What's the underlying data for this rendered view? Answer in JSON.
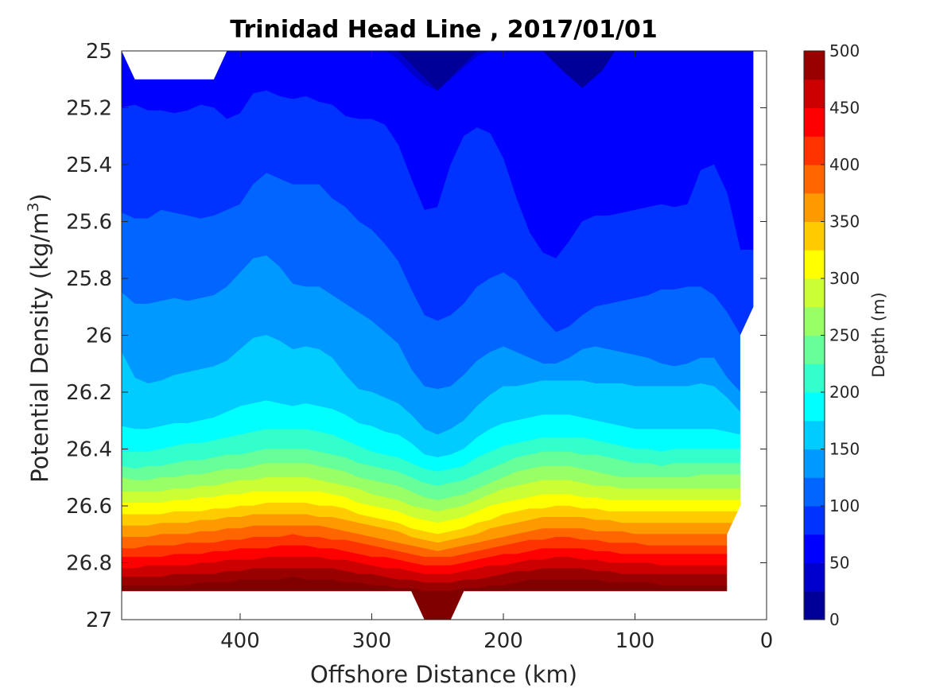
{
  "chart_data": {
    "type": "contour",
    "title": "Trinidad Head Line , 2017/01/01",
    "xlabel": "Offshore Distance (km)",
    "ylabel_main": "Potential Density (kg/m",
    "ylabel_sup": "3",
    "ylabel_close": ")",
    "xlim": [
      490,
      0
    ],
    "ylim": [
      25,
      27
    ],
    "y_reversed": true,
    "x_ticks": [
      {
        "value": 400,
        "label": "400"
      },
      {
        "value": 300,
        "label": "300"
      },
      {
        "value": 200,
        "label": "200"
      },
      {
        "value": 100,
        "label": "100"
      },
      {
        "value": 0,
        "label": "0"
      }
    ],
    "y_ticks": [
      {
        "value": 25,
        "label": "25"
      },
      {
        "value": 25.2,
        "label": "25.2"
      },
      {
        "value": 25.4,
        "label": "25.4"
      },
      {
        "value": 25.6,
        "label": "25.6"
      },
      {
        "value": 25.8,
        "label": "25.8"
      },
      {
        "value": 26,
        "label": "26"
      },
      {
        "value": 26.2,
        "label": "26.2"
      },
      {
        "value": 26.4,
        "label": "26.4"
      },
      {
        "value": 26.6,
        "label": "26.6"
      },
      {
        "value": 26.8,
        "label": "26.8"
      },
      {
        "value": 27,
        "label": "27"
      }
    ],
    "colorbar": {
      "label": "Depth (m)",
      "min": 0,
      "max": 500,
      "step": 25,
      "tick_labels": [
        "0",
        "50",
        "100",
        "150",
        "200",
        "250",
        "300",
        "350",
        "400",
        "450",
        "500"
      ],
      "colormap": "jet"
    },
    "contour_levels": [
      25,
      50,
      75,
      100,
      125,
      150,
      175,
      200,
      225,
      250,
      275,
      300,
      325,
      350,
      375,
      400,
      425,
      450,
      475
    ],
    "contour_x": [
      490,
      480,
      470,
      460,
      450,
      440,
      430,
      420,
      410,
      400,
      390,
      380,
      370,
      360,
      350,
      340,
      330,
      320,
      310,
      300,
      290,
      280,
      270,
      260,
      250,
      240,
      230,
      220,
      210,
      200,
      190,
      180,
      170,
      160,
      150,
      140,
      130,
      120,
      110,
      100,
      90,
      80,
      70,
      60,
      50,
      40,
      30,
      20
    ],
    "contour_density": {
      "25": [
        25.0,
        25.0,
        25.0,
        25.0,
        25.0,
        25.0,
        25.0,
        25.0,
        25.0,
        25.0,
        25.0,
        25.0,
        25.0,
        25.0,
        25.0,
        25.0,
        25.0,
        25.0,
        25.0,
        25.0,
        25.0,
        25.03,
        25.08,
        25.12,
        25.14,
        25.1,
        25.06,
        25.02,
        25.0,
        25.0,
        25.0,
        25.0,
        25.0,
        25.0,
        25.0,
        25.0,
        25.0,
        25.0,
        25.0,
        25.0,
        25.0,
        25.0,
        25.0,
        25.0,
        25.0,
        25.0,
        25.0,
        25.0
      ],
      "50": [
        25.2,
        25.19,
        25.21,
        25.21,
        25.22,
        25.21,
        25.19,
        25.2,
        25.24,
        25.22,
        25.15,
        25.14,
        25.16,
        25.17,
        25.16,
        25.18,
        25.19,
        25.23,
        25.24,
        25.24,
        25.26,
        25.33,
        25.45,
        25.56,
        25.55,
        25.4,
        25.3,
        25.27,
        25.29,
        25.38,
        25.52,
        25.64,
        25.71,
        25.73,
        25.67,
        25.6,
        25.58,
        25.58,
        25.57,
        25.56,
        25.55,
        25.54,
        25.55,
        25.54,
        25.42,
        25.4,
        25.5,
        25.7
      ],
      "75": [
        25.57,
        25.59,
        25.59,
        25.56,
        25.57,
        25.58,
        25.59,
        25.58,
        25.56,
        25.54,
        25.47,
        25.43,
        25.45,
        25.47,
        25.47,
        25.47,
        25.52,
        25.55,
        25.6,
        25.63,
        25.68,
        25.74,
        25.84,
        25.93,
        25.95,
        25.93,
        25.89,
        25.83,
        25.8,
        25.78,
        25.81,
        25.88,
        25.94,
        25.99,
        25.97,
        25.93,
        25.9,
        25.89,
        25.88,
        25.87,
        25.86,
        25.84,
        25.84,
        25.83,
        25.83,
        25.86,
        25.92,
        26.0
      ],
      "100": [
        25.85,
        25.89,
        25.89,
        25.88,
        25.87,
        25.88,
        25.87,
        25.86,
        25.83,
        25.78,
        25.73,
        25.72,
        25.76,
        25.82,
        25.83,
        25.83,
        25.86,
        25.89,
        25.92,
        25.95,
        25.99,
        26.03,
        26.12,
        26.18,
        26.19,
        26.18,
        26.14,
        26.09,
        26.06,
        26.04,
        26.06,
        26.08,
        26.1,
        26.1,
        26.08,
        26.05,
        26.04,
        26.05,
        26.06,
        26.07,
        26.08,
        26.1,
        26.11,
        26.1,
        26.08,
        26.08,
        26.15,
        26.2
      ],
      "125": [
        26.06,
        26.15,
        26.17,
        26.16,
        26.14,
        26.13,
        26.12,
        26.11,
        26.09,
        26.05,
        26.01,
        26.0,
        26.02,
        26.05,
        26.04,
        26.05,
        26.08,
        26.14,
        26.19,
        26.2,
        26.22,
        26.24,
        26.28,
        26.33,
        26.35,
        26.33,
        26.3,
        26.25,
        26.21,
        26.18,
        26.18,
        26.17,
        26.16,
        26.16,
        26.16,
        26.16,
        26.17,
        26.17,
        26.17,
        26.18,
        26.18,
        26.18,
        26.18,
        26.18,
        26.17,
        26.18,
        26.22,
        26.27
      ],
      "150": [
        26.32,
        26.33,
        26.33,
        26.32,
        26.31,
        26.31,
        26.3,
        26.29,
        26.27,
        26.25,
        26.24,
        26.23,
        26.24,
        26.25,
        26.24,
        26.25,
        26.26,
        26.28,
        26.31,
        26.32,
        26.34,
        26.35,
        26.38,
        26.42,
        26.43,
        26.42,
        26.4,
        26.36,
        26.33,
        26.31,
        26.3,
        26.29,
        26.28,
        26.28,
        26.28,
        26.29,
        26.3,
        26.31,
        26.32,
        26.33,
        26.33,
        26.33,
        26.33,
        26.33,
        26.33,
        26.33,
        26.34,
        26.35
      ],
      "175": [
        26.41,
        26.41,
        26.41,
        26.4,
        26.39,
        26.38,
        26.38,
        26.37,
        26.36,
        26.35,
        26.34,
        26.33,
        26.33,
        26.33,
        26.33,
        26.34,
        26.35,
        26.37,
        26.39,
        26.41,
        26.42,
        26.43,
        26.45,
        26.47,
        26.48,
        26.47,
        26.46,
        26.43,
        26.41,
        26.39,
        26.38,
        26.37,
        26.36,
        26.36,
        26.36,
        26.36,
        26.37,
        26.38,
        26.39,
        26.4,
        26.4,
        26.41,
        26.4,
        26.4,
        26.4,
        26.4,
        26.4,
        26.4
      ],
      "200": [
        26.46,
        26.47,
        26.46,
        26.46,
        26.45,
        26.44,
        26.44,
        26.43,
        26.42,
        26.42,
        26.41,
        26.4,
        26.4,
        26.4,
        26.4,
        26.41,
        26.42,
        26.43,
        26.45,
        26.46,
        26.47,
        26.48,
        26.5,
        26.52,
        26.53,
        26.52,
        26.51,
        26.49,
        26.47,
        26.45,
        26.43,
        26.42,
        26.41,
        26.41,
        26.41,
        26.42,
        26.42,
        26.43,
        26.44,
        26.45,
        26.45,
        26.46,
        26.45,
        26.45,
        26.45,
        26.45,
        26.45,
        26.45
      ],
      "225": [
        26.5,
        26.51,
        26.51,
        26.5,
        26.5,
        26.49,
        26.49,
        26.48,
        26.47,
        26.47,
        26.46,
        26.45,
        26.45,
        26.45,
        26.45,
        26.46,
        26.47,
        26.48,
        26.5,
        26.51,
        26.52,
        26.53,
        26.55,
        26.57,
        26.58,
        26.57,
        26.56,
        26.54,
        26.52,
        26.5,
        26.48,
        26.47,
        26.46,
        26.46,
        26.46,
        26.47,
        26.48,
        26.49,
        26.5,
        26.5,
        26.5,
        26.5,
        26.5,
        26.5,
        26.49,
        26.49,
        26.49,
        26.49
      ],
      "250": [
        26.55,
        26.55,
        26.55,
        26.55,
        26.54,
        26.54,
        26.53,
        26.53,
        26.52,
        26.51,
        26.51,
        26.5,
        26.5,
        26.5,
        26.5,
        26.51,
        26.52,
        26.53,
        26.54,
        26.56,
        26.57,
        26.58,
        26.6,
        26.61,
        26.62,
        26.61,
        26.6,
        26.58,
        26.56,
        26.54,
        26.53,
        26.52,
        26.51,
        26.51,
        26.51,
        26.52,
        26.53,
        26.53,
        26.54,
        26.54,
        26.54,
        26.54,
        26.54,
        26.54,
        26.54,
        26.54,
        26.54,
        26.54
      ],
      "275": [
        26.59,
        26.59,
        26.59,
        26.59,
        26.58,
        26.58,
        26.57,
        26.57,
        26.56,
        26.56,
        26.55,
        26.55,
        26.55,
        26.55,
        26.55,
        26.55,
        26.56,
        26.57,
        26.59,
        26.6,
        26.61,
        26.62,
        26.64,
        26.65,
        26.66,
        26.65,
        26.64,
        26.62,
        26.6,
        26.59,
        26.58,
        26.57,
        26.56,
        26.56,
        26.56,
        26.57,
        26.57,
        26.58,
        26.58,
        26.58,
        26.58,
        26.58,
        26.58,
        26.58,
        26.58,
        26.58,
        26.58,
        26.58
      ],
      "300": [
        26.63,
        26.63,
        26.63,
        26.63,
        26.62,
        26.62,
        26.62,
        26.61,
        26.61,
        26.6,
        26.6,
        26.59,
        26.59,
        26.59,
        26.59,
        26.6,
        26.6,
        26.61,
        26.63,
        26.64,
        26.65,
        26.66,
        26.68,
        26.69,
        26.7,
        26.69,
        26.68,
        26.66,
        26.65,
        26.63,
        26.62,
        26.61,
        26.61,
        26.6,
        26.6,
        26.61,
        26.61,
        26.62,
        26.62,
        26.62,
        26.62,
        26.62,
        26.62,
        26.62,
        26.62,
        26.62,
        26.62,
        26.62
      ],
      "325": [
        26.67,
        26.67,
        26.67,
        26.66,
        26.66,
        26.66,
        26.65,
        26.65,
        26.64,
        26.64,
        26.63,
        26.63,
        26.63,
        26.63,
        26.63,
        26.64,
        26.64,
        26.65,
        26.66,
        26.67,
        26.68,
        26.69,
        26.71,
        26.72,
        26.73,
        26.72,
        26.71,
        26.7,
        26.68,
        26.67,
        26.66,
        26.65,
        26.64,
        26.64,
        26.64,
        26.64,
        26.65,
        26.65,
        26.66,
        26.66,
        26.66,
        26.66,
        26.66,
        26.66,
        26.66,
        26.66,
        26.66,
        26.66
      ],
      "350": [
        26.71,
        26.71,
        26.71,
        26.7,
        26.7,
        26.7,
        26.69,
        26.69,
        26.68,
        26.68,
        26.67,
        26.67,
        26.67,
        26.67,
        26.67,
        26.67,
        26.68,
        26.69,
        26.7,
        26.71,
        26.72,
        26.73,
        26.74,
        26.75,
        26.76,
        26.75,
        26.74,
        26.73,
        26.72,
        26.71,
        26.7,
        26.69,
        26.68,
        26.68,
        26.68,
        26.68,
        26.69,
        26.69,
        26.69,
        26.7,
        26.7,
        26.7,
        26.7,
        26.7,
        26.7,
        26.7,
        26.7,
        26.7
      ],
      "375": [
        26.75,
        26.75,
        26.74,
        26.74,
        26.74,
        26.73,
        26.73,
        26.73,
        26.72,
        26.72,
        26.71,
        26.71,
        26.71,
        26.7,
        26.71,
        26.71,
        26.72,
        26.72,
        26.73,
        26.74,
        26.75,
        26.76,
        26.77,
        26.78,
        26.78,
        26.78,
        26.77,
        26.76,
        26.75,
        26.74,
        26.73,
        26.72,
        26.72,
        26.71,
        26.71,
        26.72,
        26.72,
        26.73,
        26.73,
        26.73,
        26.74,
        26.74,
        26.74,
        26.74,
        26.74,
        26.74,
        26.74,
        26.74
      ],
      "400": [
        26.78,
        26.78,
        26.78,
        26.78,
        26.77,
        26.77,
        26.77,
        26.76,
        26.76,
        26.75,
        26.75,
        26.75,
        26.74,
        26.74,
        26.74,
        26.75,
        26.75,
        26.76,
        26.77,
        26.78,
        26.78,
        26.79,
        26.8,
        26.81,
        26.81,
        26.81,
        26.8,
        26.79,
        26.78,
        26.77,
        26.77,
        26.76,
        26.75,
        26.75,
        26.75,
        26.75,
        26.76,
        26.76,
        26.77,
        26.77,
        26.77,
        26.77,
        26.77,
        26.77,
        26.77,
        26.77,
        26.77,
        26.77
      ],
      "425": [
        26.82,
        26.82,
        26.81,
        26.81,
        26.81,
        26.81,
        26.8,
        26.8,
        26.79,
        26.79,
        26.79,
        26.78,
        26.78,
        26.78,
        26.78,
        26.78,
        26.79,
        26.79,
        26.8,
        26.81,
        26.82,
        26.82,
        26.83,
        26.84,
        26.84,
        26.84,
        26.83,
        26.82,
        26.81,
        26.81,
        26.8,
        26.79,
        26.79,
        26.78,
        26.78,
        26.79,
        26.79,
        26.8,
        26.8,
        26.8,
        26.8,
        26.81,
        26.81,
        26.81,
        26.81,
        26.81,
        26.81,
        26.81
      ],
      "450": [
        26.85,
        26.85,
        26.85,
        26.85,
        26.84,
        26.84,
        26.84,
        26.84,
        26.83,
        26.83,
        26.82,
        26.82,
        26.82,
        26.82,
        26.82,
        26.82,
        26.82,
        26.83,
        26.84,
        26.84,
        26.85,
        26.86,
        26.86,
        26.87,
        26.87,
        26.87,
        26.86,
        26.86,
        26.85,
        26.84,
        26.83,
        26.83,
        26.82,
        26.82,
        26.82,
        26.82,
        26.83,
        26.83,
        26.84,
        26.84,
        26.84,
        26.84,
        26.84,
        26.84,
        26.84,
        26.84,
        26.84,
        26.84
      ],
      "475": [
        26.88,
        26.88,
        26.88,
        26.88,
        26.88,
        26.88,
        26.87,
        26.87,
        26.87,
        26.86,
        26.86,
        26.86,
        26.86,
        26.85,
        26.86,
        26.86,
        26.86,
        26.87,
        26.87,
        26.88,
        26.88,
        26.89,
        26.89,
        26.9,
        26.9,
        26.9,
        26.89,
        26.89,
        26.88,
        26.88,
        26.87,
        26.86,
        26.86,
        26.86,
        26.86,
        26.86,
        26.86,
        26.87,
        26.87,
        26.87,
        26.87,
        26.88,
        26.88,
        26.88,
        26.88,
        26.88,
        26.88,
        26.88
      ]
    },
    "data_domain": {
      "top": [
        [
          490,
          25.0
        ],
        [
          480,
          25.1
        ],
        [
          420,
          25.1
        ],
        [
          410,
          25.0
        ],
        [
          0,
          25.0
        ]
      ],
      "right": [
        [
          10,
          25.0
        ],
        [
          10,
          25.9
        ],
        [
          20,
          26.0
        ],
        [
          20,
          26.6
        ],
        [
          30,
          26.7
        ],
        [
          30,
          26.9
        ]
      ],
      "bottom": [
        [
          30,
          26.9
        ],
        [
          230,
          26.9
        ],
        [
          240,
          27.0
        ],
        [
          260,
          27.0
        ],
        [
          270,
          26.9
        ],
        [
          490,
          26.9
        ]
      ]
    },
    "extra_dark_patches": [
      {
        "x": [
          280,
          265,
          250,
          235,
          220
        ],
        "y": [
          25.0,
          25.07,
          25.14,
          25.07,
          25.0
        ]
      },
      {
        "x": [
          170,
          155,
          140,
          125,
          115
        ],
        "y": [
          25.0,
          25.07,
          25.13,
          25.07,
          25.0
        ]
      }
    ],
    "grid": false
  }
}
